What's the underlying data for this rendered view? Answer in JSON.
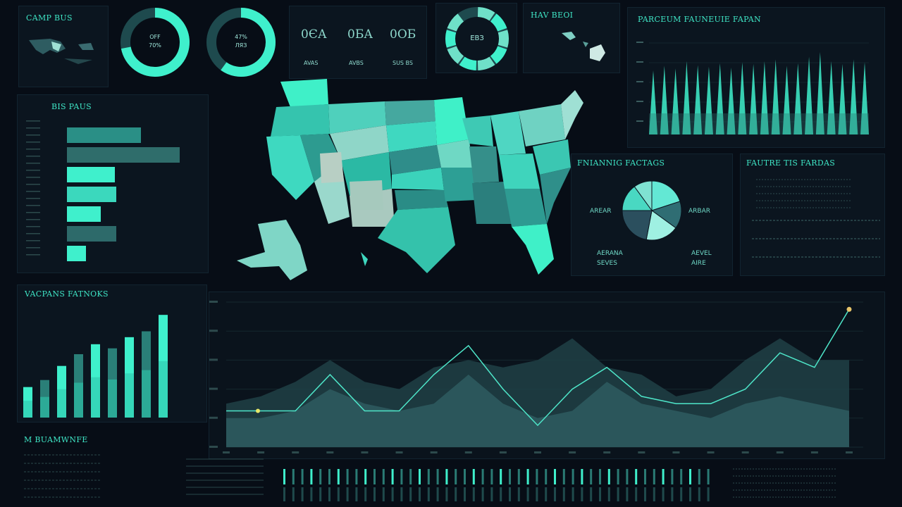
{
  "colors": {
    "accent": "#3ff0cc",
    "accent_dark": "#2a8f86",
    "panel": "#0b151f",
    "background": "#070d16"
  },
  "header_panel": {
    "title": "CAMP BUS"
  },
  "rings": [
    {
      "line1": "OFF",
      "line2": "70%",
      "fill": 0.72
    },
    {
      "line1": "47%",
      "line2": "ЛЯЗ",
      "fill": 0.6
    }
  ],
  "stats": [
    {
      "value": "0ЄА",
      "label": "AVAS"
    },
    {
      "value": "0БА",
      "label": "AVBS"
    },
    {
      "value": "0ОБ",
      "label": "SUS BS"
    }
  ],
  "donut_panel": {
    "center": "ЕВЗ",
    "fill": 0.82
  },
  "region_panel": {
    "title": "HAV BEOI"
  },
  "top_right_chart": {
    "title": "PARCEUM FAUNEUIE FAPAN",
    "y_ticks": [
      "",
      "",
      "",
      "",
      ""
    ]
  },
  "bar_panel": {
    "title": "BIS PAUS"
  },
  "pie_panel": {
    "title": "FNIANNIG FACTAGS",
    "left_label": "AREAR",
    "right_label": "ARBAR",
    "legend": [
      "AERANA",
      "SEVES",
      "AEVEL",
      "AIRE"
    ]
  },
  "list_panel": {
    "title": "FAUTRE TIS FARDAS"
  },
  "vertical_bar_panel": {
    "title": "VACPANS FATNOKS"
  },
  "bottom_left": {
    "title": "M BUAMWNFE"
  },
  "chart_data": [
    {
      "type": "bar",
      "orientation": "horizontal",
      "values": [
        105,
        160,
        68,
        70,
        48,
        70,
        27
      ],
      "ylim": [
        0,
        160
      ],
      "title": "BIS PAUS"
    },
    {
      "type": "bar",
      "values": [
        52,
        64,
        88,
        108,
        125,
        118,
        137,
        147,
        175
      ],
      "title": "VACPANS FATNOKS"
    },
    {
      "type": "pie",
      "values": [
        20,
        15,
        18,
        22,
        15,
        10
      ],
      "title": "FNIANNIG FACTAGS"
    },
    {
      "type": "line",
      "title": "",
      "ylim": [
        0,
        200
      ],
      "x": [
        1,
        2,
        3,
        4,
        5,
        6,
        7,
        8,
        9,
        10,
        11,
        12,
        13,
        14,
        15,
        16,
        17,
        18,
        19
      ],
      "series": [
        {
          "values": [
            50,
            50,
            50,
            100,
            50,
            50,
            100,
            140,
            80,
            30,
            80,
            110,
            70,
            60,
            60,
            80,
            130,
            110,
            190
          ]
        },
        {
          "values": [
            60,
            70,
            90,
            120,
            90,
            80,
            110,
            120,
            110,
            120,
            150,
            110,
            100,
            70,
            80,
            120,
            150,
            120,
            120
          ]
        },
        {
          "values": [
            40,
            40,
            50,
            80,
            60,
            50,
            60,
            100,
            60,
            40,
            50,
            90,
            60,
            50,
            40,
            60,
            70,
            60,
            50
          ]
        }
      ]
    },
    {
      "type": "bar",
      "values": [
        70,
        75,
        72,
        80,
        76,
        74,
        78,
        73,
        79,
        77,
        80,
        82,
        75,
        78,
        85,
        90,
        80,
        77,
        82,
        79
      ],
      "title": "PARCEUM FAUNEUIE FAPAN"
    }
  ]
}
